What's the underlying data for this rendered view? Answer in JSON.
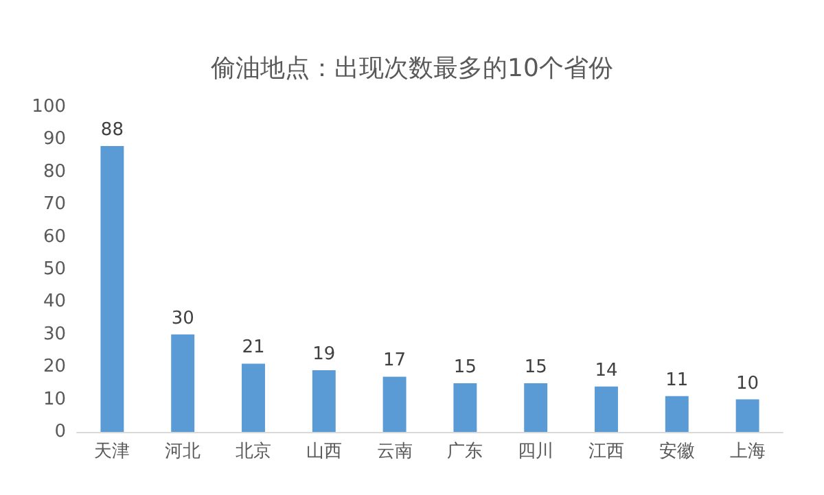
{
  "chart_data": {
    "type": "bar",
    "title": "偷油地点：出现次数最多的10个省份",
    "categories": [
      "天津",
      "河北",
      "北京",
      "山西",
      "云南",
      "广东",
      "四川",
      "江西",
      "安徽",
      "上海"
    ],
    "values": [
      88,
      30,
      21,
      19,
      17,
      15,
      15,
      14,
      11,
      10
    ],
    "color": "#5b9bd5",
    "ylim": [
      0,
      100
    ],
    "yticks": [
      0,
      10,
      20,
      30,
      40,
      50,
      60,
      70,
      80,
      90,
      100
    ],
    "grid": false,
    "data_labels": true
  }
}
